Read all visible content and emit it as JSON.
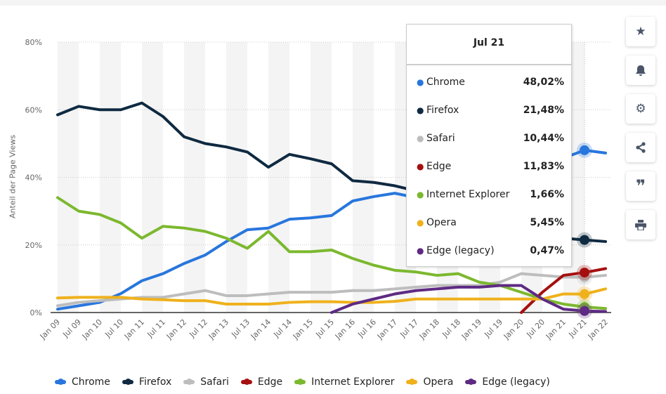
{
  "chart_data": {
    "type": "line",
    "ylabel": "Anteil der Page Views",
    "ylim": [
      0,
      80
    ],
    "yticks": [
      "0%",
      "20%",
      "40%",
      "60%",
      "80%"
    ],
    "grid": true,
    "legend": "bottom",
    "x": [
      "Jan 09",
      "Jul 09",
      "Jan 10",
      "Jul 10",
      "Jan 11",
      "Jul 11",
      "Jan 12",
      "Jul 12",
      "Jan 13",
      "Jul 13",
      "Jan 14",
      "Jul 14",
      "Jan 15",
      "Jul 15",
      "Jan 16",
      "Jul 16",
      "Jan 17",
      "Jul 17",
      "Jan 18",
      "Jul 18",
      "Jan 19",
      "Jul 19",
      "Jan 20",
      "Jul 20",
      "Jan 21",
      "Jul 21",
      "Jan 22"
    ],
    "series": [
      {
        "name": "Chrome",
        "color": "#2876dd",
        "values": [
          1,
          2,
          3,
          5.6,
          9.4,
          11.5,
          14.5,
          17,
          21,
          24.5,
          25,
          27.6,
          28,
          28.7,
          33,
          34.3,
          35.3,
          34,
          37,
          39,
          41,
          43,
          44,
          45,
          45.7,
          48.02,
          47.2
        ]
      },
      {
        "name": "Firefox",
        "color": "#0f2a41",
        "values": [
          58.5,
          61,
          60,
          60,
          62,
          58,
          52,
          50,
          49,
          47.5,
          43,
          46.8,
          45.5,
          44,
          39,
          38.5,
          37.5,
          36,
          34,
          31,
          29,
          27,
          25,
          23.5,
          22,
          21.48,
          21
        ]
      },
      {
        "name": "Safari",
        "color": "#bdbdbd",
        "values": [
          2,
          3,
          3.5,
          4,
          4.5,
          4.5,
          5.5,
          6.5,
          5,
          5,
          5.5,
          6,
          6,
          6,
          6.5,
          6.5,
          7,
          7.5,
          8,
          8,
          8,
          9,
          11.5,
          11,
          10.5,
          10.44,
          11
        ]
      },
      {
        "name": "Edge",
        "color": "#a50f0f",
        "values": [
          null,
          null,
          null,
          null,
          null,
          null,
          null,
          null,
          null,
          null,
          null,
          null,
          null,
          null,
          null,
          null,
          null,
          null,
          null,
          null,
          null,
          null,
          0,
          6,
          11,
          11.83,
          13
        ]
      },
      {
        "name": "Internet Explorer",
        "color": "#7cb82f",
        "values": [
          34,
          30,
          29,
          26.5,
          22,
          25.5,
          25,
          24,
          22,
          19,
          24,
          18,
          18,
          18.5,
          16,
          14,
          12.5,
          12,
          11,
          11.5,
          9,
          8,
          6,
          4,
          2.5,
          1.66,
          1.2
        ]
      },
      {
        "name": "Opera",
        "color": "#efb11c",
        "values": [
          4.3,
          4.5,
          4.5,
          4.5,
          4,
          3.8,
          3.5,
          3.5,
          2.5,
          2.5,
          2.5,
          3,
          3.2,
          3.2,
          3,
          3,
          3.3,
          4,
          4,
          4,
          4,
          4,
          4,
          4,
          5.5,
          5.45,
          7
        ]
      },
      {
        "name": "Edge (legacy)",
        "color": "#5e2a84",
        "values": [
          null,
          null,
          null,
          null,
          null,
          null,
          null,
          null,
          null,
          null,
          null,
          null,
          null,
          0,
          2.5,
          4,
          5.5,
          6.5,
          7,
          7.5,
          7.5,
          8,
          8,
          4,
          1,
          0.47,
          0.3
        ]
      }
    ],
    "tooltip": {
      "title": "Jul 21",
      "rows": [
        {
          "name": "Chrome",
          "value": "48,02%"
        },
        {
          "name": "Firefox",
          "value": "21,48%"
        },
        {
          "name": "Safari",
          "value": "10,44%"
        },
        {
          "name": "Edge",
          "value": "11,83%"
        },
        {
          "name": "Internet Explorer",
          "value": "1,66%"
        },
        {
          "name": "Opera",
          "value": "5,45%"
        },
        {
          "name": "Edge (legacy)",
          "value": "0,47%"
        }
      ],
      "x": "Jul 21"
    }
  },
  "sidebar": [
    "star-icon",
    "bell-icon",
    "gear-icon",
    "share-icon",
    "quote-icon",
    "print-icon"
  ]
}
